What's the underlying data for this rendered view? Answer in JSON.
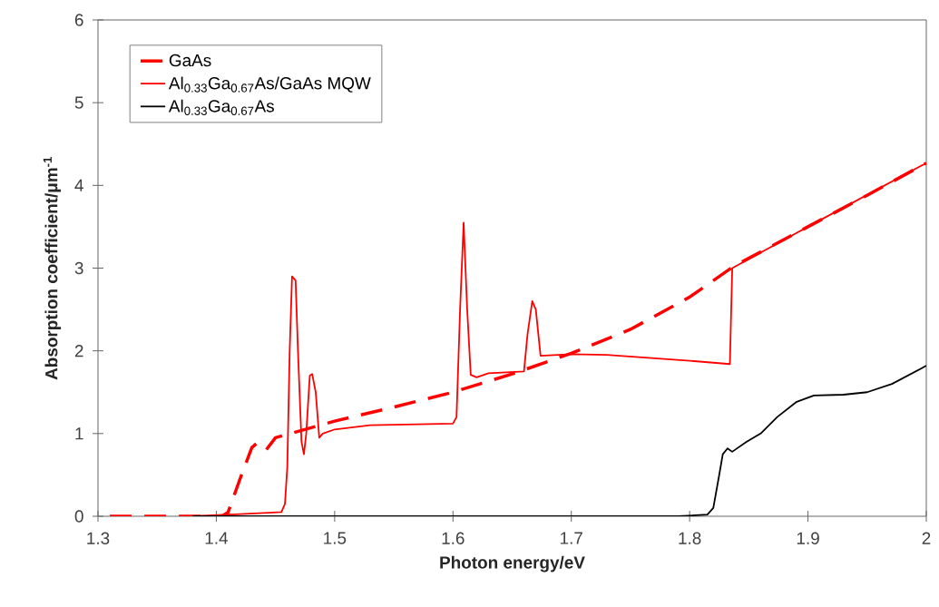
{
  "chart_data": {
    "type": "line",
    "xlabel": "Photon energy/eV",
    "ylabel": "Absorption coefficient/μm$^{-1}$",
    "xlim": [
      1.3,
      2.0
    ],
    "xticks": [
      1.3,
      1.4,
      1.5,
      1.6,
      1.7,
      1.8,
      1.9,
      2
    ],
    "ylim": [
      0,
      6
    ],
    "yticks": [
      0,
      1,
      2,
      3,
      4,
      5,
      6
    ],
    "legend": "top left",
    "series": [
      {
        "name": "GaAs",
        "color": "#ff0000",
        "line_style": "dashed",
        "x": [
          1.31,
          1.405,
          1.41,
          1.42,
          1.43,
          1.434,
          1.442,
          1.45,
          1.5,
          1.55,
          1.6,
          1.65,
          1.7,
          1.75,
          1.8,
          1.837,
          1.9,
          1.95,
          2.0
        ],
        "values": [
          0,
          0,
          0.05,
          0.45,
          0.83,
          0.88,
          0.8,
          0.95,
          1.15,
          1.32,
          1.5,
          1.72,
          1.97,
          2.26,
          2.65,
          3.02,
          3.5,
          3.88,
          4.27
        ]
      },
      {
        "name": "Al$_{0.33}$Ga$_{0.67}$As/GaAs MQW",
        "color": "#ff0000",
        "line_style": "solid",
        "x": [
          1.38,
          1.44,
          1.455,
          1.458,
          1.46,
          1.462,
          1.464,
          1.467,
          1.469,
          1.472,
          1.474,
          1.476,
          1.479,
          1.481,
          1.484,
          1.487,
          1.49,
          1.5,
          1.53,
          1.6,
          1.603,
          1.606,
          1.609,
          1.612,
          1.615,
          1.62,
          1.63,
          1.66,
          1.663,
          1.667,
          1.67,
          1.674,
          1.7,
          1.73,
          1.8,
          1.834,
          1.836,
          1.9,
          2.0
        ],
        "values": [
          0,
          0.04,
          0.05,
          0.15,
          0.6,
          2.0,
          2.9,
          2.85,
          2.0,
          0.9,
          0.75,
          1.0,
          1.7,
          1.72,
          1.5,
          0.95,
          1.0,
          1.05,
          1.1,
          1.12,
          1.2,
          2.5,
          3.55,
          2.5,
          1.71,
          1.68,
          1.73,
          1.75,
          2.2,
          2.6,
          2.5,
          1.94,
          1.96,
          1.95,
          1.88,
          1.84,
          3.0,
          3.5,
          4.27
        ]
      },
      {
        "name": "Al$_{0.33}$Ga$_{0.67}$As",
        "color": "#000000",
        "line_style": "solid",
        "x": [
          1.38,
          1.79,
          1.815,
          1.82,
          1.825,
          1.828,
          1.832,
          1.836,
          1.848,
          1.86,
          1.874,
          1.89,
          1.905,
          1.93,
          1.95,
          1.971,
          2.0
        ],
        "values": [
          0,
          0,
          0.02,
          0.1,
          0.5,
          0.75,
          0.82,
          0.78,
          0.9,
          1.0,
          1.2,
          1.38,
          1.46,
          1.47,
          1.5,
          1.6,
          1.82
        ]
      }
    ]
  }
}
